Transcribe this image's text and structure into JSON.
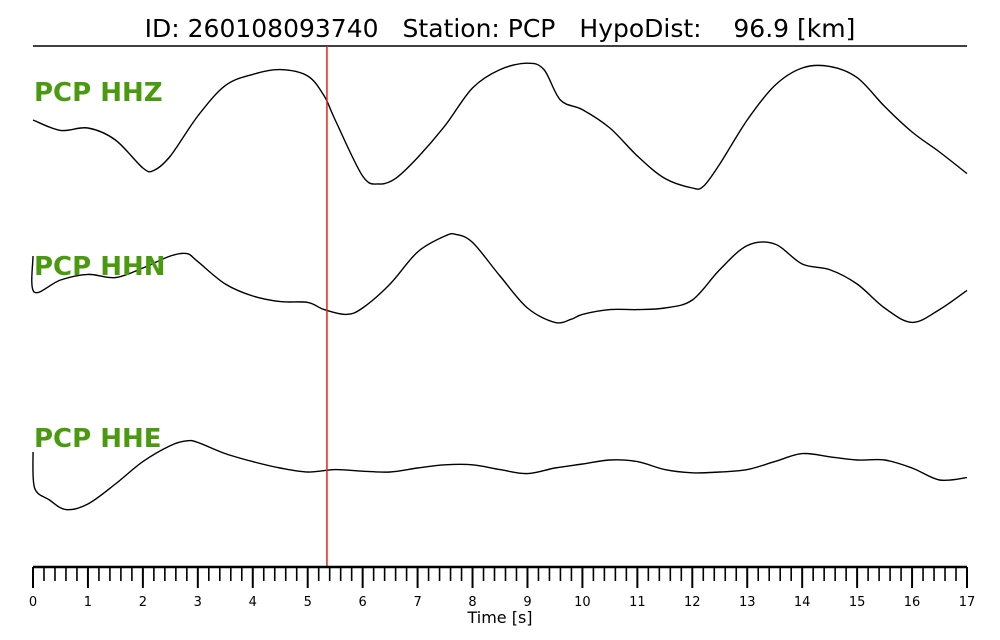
{
  "header": {
    "id_text": "ID: 260108093740",
    "station_text": "Station: PCP",
    "dist_text": "HypoDist:    96.9 [km]"
  },
  "colors": {
    "trace": "#000000",
    "label": "#4a9a10",
    "marker": "#e8221b"
  },
  "chart_data": {
    "type": "line",
    "xlabel": "Time [s]",
    "xlim": [
      0,
      17
    ],
    "x_major_ticks": [
      0,
      1,
      2,
      3,
      4,
      5,
      6,
      7,
      8,
      9,
      10,
      11,
      12,
      13,
      14,
      15,
      16,
      17
    ],
    "x_minor_step": 0.2,
    "grid": false,
    "marker_line": {
      "x": 5.35,
      "color": "#e8221b"
    },
    "series": [
      {
        "name": "PCP HHZ",
        "x": [
          0,
          0.5,
          1,
          1.5,
          2,
          2.2,
          2.5,
          3,
          3.5,
          4,
          4.5,
          5,
          5.3,
          5.5,
          6,
          6.3,
          6.6,
          7,
          7.5,
          8,
          8.5,
          9,
          9.3,
          9.6,
          10,
          10.5,
          11,
          11.5,
          12,
          12.2,
          12.5,
          13,
          13.5,
          14,
          14.5,
          15,
          15.5,
          16,
          16.5,
          17
        ],
        "y": [
          0.25,
          0.12,
          0.15,
          0.0,
          -0.35,
          -0.38,
          -0.2,
          0.3,
          0.68,
          0.82,
          0.88,
          0.8,
          0.55,
          0.25,
          -0.45,
          -0.55,
          -0.48,
          -0.22,
          0.18,
          0.65,
          0.88,
          0.96,
          0.88,
          0.5,
          0.38,
          0.15,
          -0.2,
          -0.48,
          -0.6,
          -0.58,
          -0.3,
          0.25,
          0.68,
          0.9,
          0.92,
          0.78,
          0.42,
          0.1,
          -0.15,
          -0.42
        ]
      },
      {
        "name": "PCP HHN",
        "x": [
          0,
          0.02,
          0.5,
          1,
          1.5,
          2,
          2.5,
          2.8,
          3,
          3.5,
          4,
          4.5,
          5,
          5.3,
          5.7,
          6,
          6.5,
          7,
          7.5,
          7.7,
          8,
          8.5,
          9,
          9.5,
          9.8,
          10,
          10.5,
          11,
          11.5,
          12,
          12.5,
          13,
          13.5,
          14,
          14.5,
          15,
          15.5,
          16,
          16.5,
          17
        ],
        "y": [
          0.55,
          0.1,
          0.25,
          0.32,
          0.28,
          0.4,
          0.55,
          0.58,
          0.48,
          0.2,
          0.05,
          -0.02,
          -0.03,
          -0.12,
          -0.18,
          -0.1,
          0.2,
          0.6,
          0.8,
          0.82,
          0.72,
          0.3,
          -0.1,
          -0.28,
          -0.24,
          -0.18,
          -0.12,
          -0.12,
          -0.1,
          0.0,
          0.38,
          0.68,
          0.7,
          0.45,
          0.38,
          0.2,
          -0.1,
          -0.28,
          -0.12,
          0.12
        ]
      },
      {
        "name": "PCP HHE",
        "x": [
          0,
          0.03,
          0.3,
          0.6,
          1,
          1.5,
          2,
          2.5,
          2.8,
          3,
          3.5,
          4,
          4.5,
          5,
          5.5,
          6,
          6.5,
          7,
          7.5,
          8,
          8.5,
          9,
          9.5,
          10,
          10.5,
          11,
          11.5,
          12,
          12.5,
          13,
          13.5,
          14,
          14.5,
          15,
          15.5,
          16,
          16.5,
          17
        ],
        "y": [
          0.6,
          0.15,
          0.0,
          -0.12,
          -0.05,
          0.2,
          0.48,
          0.68,
          0.74,
          0.72,
          0.58,
          0.48,
          0.4,
          0.35,
          0.38,
          0.36,
          0.35,
          0.4,
          0.44,
          0.44,
          0.38,
          0.33,
          0.4,
          0.45,
          0.5,
          0.48,
          0.38,
          0.34,
          0.35,
          0.38,
          0.48,
          0.58,
          0.54,
          0.5,
          0.5,
          0.4,
          0.25,
          0.28
        ]
      }
    ]
  }
}
